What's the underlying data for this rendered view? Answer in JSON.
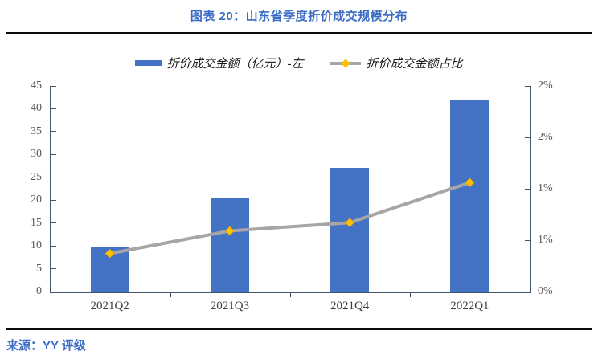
{
  "header": {
    "title": "图表 20：山东省季度折价成交规模分布"
  },
  "legend": {
    "items": [
      {
        "label": "折价成交金额（亿元）-左",
        "swatch": "bar",
        "color": "#4472C4"
      },
      {
        "label": "折价成交金额占比",
        "swatch": "line-diamond",
        "line_color": "#A6A6A6",
        "marker_color": "#FFC000"
      }
    ]
  },
  "chart_data": {
    "type": "bar",
    "title": "山东省季度折价成交规模分布",
    "categories": [
      "2021Q2",
      "2021Q3",
      "2021Q4",
      "2022Q1"
    ],
    "series": [
      {
        "name": "折价成交金额（亿元）-左",
        "type": "bar",
        "axis": "left",
        "values": [
          9.6,
          20.6,
          27.1,
          42.0
        ],
        "color": "#4472C4"
      },
      {
        "name": "折价成交金额占比",
        "type": "line",
        "axis": "right",
        "values_percent": [
          0.37,
          0.59,
          0.67,
          1.06
        ],
        "color": "#A6A6A6",
        "marker": "diamond",
        "marker_color": "#FFC000"
      }
    ],
    "left_axis": {
      "min": 0,
      "max": 45,
      "tick_step": 5,
      "tick_labels": [
        "0",
        "5",
        "10",
        "15",
        "20",
        "25",
        "30",
        "35",
        "40",
        "45"
      ]
    },
    "right_axis": {
      "min": 0,
      "max": 2,
      "tick_values": [
        0,
        0.5,
        1.0,
        1.5,
        2.0
      ],
      "tick_labels": [
        "0%",
        "1%",
        "1%",
        "2%",
        "2%"
      ]
    },
    "grid": false,
    "legend_position": "top"
  },
  "footer": {
    "source": "来源：YY 评级"
  },
  "colors": {
    "title_blue": "#3A6BC5",
    "bar_blue": "#4472C4",
    "line_gray": "#A6A6A6",
    "marker_gold": "#FFC000",
    "axis_color": "#44546A",
    "rule_black": "#0A0A0A",
    "tick_label_gray": "#595959"
  }
}
